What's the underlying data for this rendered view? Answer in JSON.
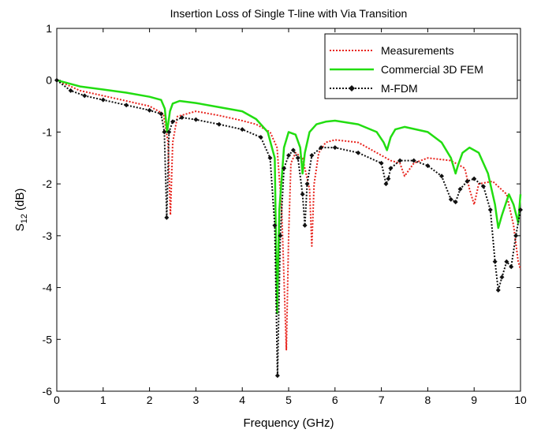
{
  "chart_data": {
    "type": "line",
    "title": "Insertion Loss of Single T-line with Via Transition",
    "xlabel": "Frequency (GHz)",
    "ylabel_main": "S",
    "ylabel_sub": "12",
    "ylabel_unit": " (dB)",
    "xlim": [
      0,
      10
    ],
    "ylim": [
      -6,
      1
    ],
    "xticks": [
      0,
      1,
      2,
      3,
      4,
      5,
      6,
      7,
      8,
      9,
      10
    ],
    "yticks": [
      1,
      0,
      -1,
      -2,
      -3,
      -4,
      -5,
      -6
    ],
    "xtick_labels": [
      "0",
      "1",
      "2",
      "3",
      "4",
      "5",
      "6",
      "7",
      "8",
      "9",
      "10"
    ],
    "ytick_labels": [
      "1",
      "0",
      "-1",
      "-2",
      "-3",
      "-4",
      "-5",
      "-6"
    ],
    "grid": false,
    "legend_position": "top-right",
    "series": [
      {
        "name": "Measurements",
        "color": "#e8231c",
        "style": "dotted",
        "marker": "none",
        "x": [
          0,
          0.5,
          1,
          1.5,
          2,
          2.3,
          2.4,
          2.45,
          2.5,
          2.6,
          3,
          3.5,
          4,
          4.3,
          4.6,
          4.75,
          4.85,
          4.95,
          5.0,
          5.05,
          5.15,
          5.3,
          5.45,
          5.5,
          5.55,
          5.65,
          5.8,
          6,
          6.5,
          7,
          7.2,
          7.4,
          7.5,
          7.7,
          8,
          8.5,
          8.8,
          8.9,
          9.0,
          9.1,
          9.4,
          9.7,
          9.85,
          9.95,
          10
        ],
        "y": [
          0,
          -0.2,
          -0.3,
          -0.4,
          -0.5,
          -0.65,
          -1.2,
          -2.6,
          -1.2,
          -0.7,
          -0.6,
          -0.68,
          -0.78,
          -0.85,
          -1.0,
          -1.3,
          -2.5,
          -5.2,
          -3.0,
          -1.6,
          -1.4,
          -1.5,
          -2.1,
          -3.2,
          -2.0,
          -1.4,
          -1.2,
          -1.15,
          -1.2,
          -1.45,
          -1.55,
          -1.6,
          -1.85,
          -1.6,
          -1.5,
          -1.55,
          -1.7,
          -2.1,
          -2.4,
          -2.0,
          -1.95,
          -2.2,
          -2.8,
          -3.5,
          -3.65
        ]
      },
      {
        "name": "Commercial 3D FEM",
        "color": "#22dd11",
        "style": "solid",
        "marker": "none",
        "x": [
          0,
          0.5,
          1,
          1.5,
          2,
          2.25,
          2.33,
          2.38,
          2.44,
          2.5,
          2.65,
          3,
          3.5,
          4,
          4.3,
          4.55,
          4.7,
          4.75,
          4.8,
          4.9,
          5.0,
          5.15,
          5.25,
          5.3,
          5.35,
          5.45,
          5.6,
          5.8,
          6,
          6.5,
          6.9,
          7.05,
          7.12,
          7.2,
          7.3,
          7.5,
          8,
          8.3,
          8.5,
          8.6,
          8.65,
          8.75,
          8.9,
          9.1,
          9.3,
          9.45,
          9.52,
          9.6,
          9.75,
          9.85,
          9.95,
          10
        ],
        "y": [
          0,
          -0.12,
          -0.18,
          -0.24,
          -0.32,
          -0.38,
          -0.55,
          -1.0,
          -0.6,
          -0.45,
          -0.4,
          -0.44,
          -0.52,
          -0.6,
          -0.75,
          -1.0,
          -1.5,
          -4.5,
          -2.5,
          -1.3,
          -1.0,
          -1.05,
          -1.3,
          -1.8,
          -1.4,
          -1.0,
          -0.85,
          -0.8,
          -0.78,
          -0.85,
          -1.0,
          -1.2,
          -1.35,
          -1.1,
          -0.95,
          -0.9,
          -1.0,
          -1.2,
          -1.5,
          -1.8,
          -1.65,
          -1.4,
          -1.3,
          -1.4,
          -1.8,
          -2.4,
          -2.85,
          -2.6,
          -2.2,
          -2.4,
          -2.75,
          -2.2
        ]
      },
      {
        "name": "M-FDM",
        "color": "#111111",
        "style": "dotted",
        "marker": "diamond",
        "x": [
          0,
          0.3,
          0.6,
          1,
          1.5,
          2,
          2.25,
          2.32,
          2.37,
          2.42,
          2.5,
          2.7,
          3,
          3.5,
          4,
          4.4,
          4.6,
          4.7,
          4.76,
          4.82,
          4.9,
          5.0,
          5.1,
          5.2,
          5.3,
          5.35,
          5.4,
          5.5,
          5.7,
          6,
          6.5,
          7,
          7.1,
          7.15,
          7.2,
          7.4,
          7.7,
          8,
          8.3,
          8.5,
          8.6,
          8.7,
          8.85,
          9.0,
          9.2,
          9.35,
          9.45,
          9.52,
          9.6,
          9.7,
          9.8,
          9.9,
          10
        ],
        "y": [
          0,
          -0.2,
          -0.3,
          -0.38,
          -0.48,
          -0.58,
          -0.65,
          -1.0,
          -2.65,
          -1.0,
          -0.8,
          -0.72,
          -0.76,
          -0.85,
          -0.95,
          -1.1,
          -1.5,
          -2.8,
          -5.7,
          -3.0,
          -1.7,
          -1.45,
          -1.35,
          -1.5,
          -2.2,
          -2.8,
          -2.0,
          -1.45,
          -1.3,
          -1.3,
          -1.4,
          -1.6,
          -2.0,
          -1.9,
          -1.7,
          -1.55,
          -1.55,
          -1.65,
          -1.85,
          -2.3,
          -2.35,
          -2.1,
          -1.95,
          -1.9,
          -2.05,
          -2.5,
          -3.5,
          -4.05,
          -3.8,
          -3.5,
          -3.6,
          -3.0,
          -2.5
        ]
      }
    ]
  }
}
